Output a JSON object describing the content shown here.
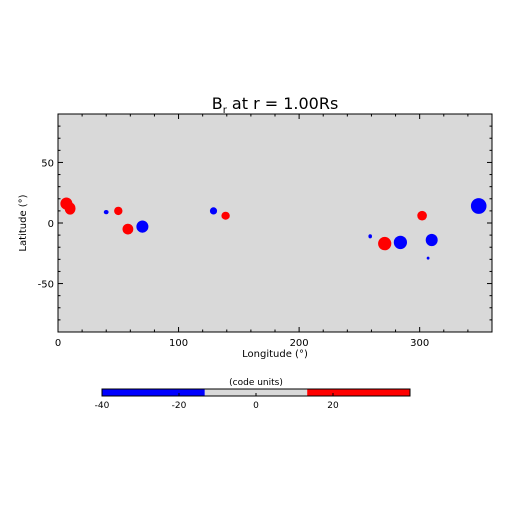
{
  "chart_data": {
    "type": "heatmap",
    "title_main": "B",
    "title_sub": "r",
    "title_rest": " at r = 1.00Rs",
    "xlabel": "Longitude (°)",
    "ylabel": "Latitude (°)",
    "xlim": [
      0,
      360
    ],
    "ylim": [
      -90,
      90
    ],
    "xticks": [
      0,
      100,
      200,
      300
    ],
    "yticks": [
      -50,
      0,
      50
    ],
    "grid": false,
    "background_value": 0,
    "colors": {
      "positive": "#ff0000",
      "negative": "#0000ff",
      "neutral": "#d9d9d9"
    },
    "blobs": [
      {
        "lon": 7,
        "lat": 16,
        "rlon": 5,
        "rlat": 5,
        "sign": "positive"
      },
      {
        "lon": 10,
        "lat": 12,
        "rlon": 4.5,
        "rlat": 5,
        "sign": "positive"
      },
      {
        "lon": 40,
        "lat": 9,
        "rlon": 2,
        "rlat": 1.7,
        "sign": "negative"
      },
      {
        "lon": 50,
        "lat": 10,
        "rlon": 3.5,
        "rlat": 3.5,
        "sign": "positive"
      },
      {
        "lon": 58,
        "lat": -5,
        "rlon": 4.5,
        "rlat": 4.5,
        "sign": "positive"
      },
      {
        "lon": 70,
        "lat": -3,
        "rlon": 5,
        "rlat": 5,
        "sign": "negative"
      },
      {
        "lon": 129,
        "lat": 10,
        "rlon": 3,
        "rlat": 3,
        "sign": "negative"
      },
      {
        "lon": 139,
        "lat": 6,
        "rlon": 3.5,
        "rlat": 3.3,
        "sign": "positive"
      },
      {
        "lon": 259,
        "lat": -11,
        "rlon": 1.5,
        "rlat": 1.7,
        "sign": "negative"
      },
      {
        "lon": 271,
        "lat": -17,
        "rlon": 5.5,
        "rlat": 5.5,
        "sign": "positive"
      },
      {
        "lon": 284,
        "lat": -16,
        "rlon": 5.5,
        "rlat": 5.5,
        "sign": "negative"
      },
      {
        "lon": 302,
        "lat": 6,
        "rlon": 4,
        "rlat": 4,
        "sign": "positive"
      },
      {
        "lon": 310,
        "lat": -14,
        "rlon": 5,
        "rlat": 5,
        "sign": "negative"
      },
      {
        "lon": 307,
        "lat": -29,
        "rlon": 1.2,
        "rlat": 1.2,
        "sign": "negative"
      },
      {
        "lon": 349,
        "lat": 14,
        "rlon": 6.5,
        "rlat": 6.5,
        "sign": "negative"
      }
    ],
    "colorbar": {
      "label": "(code units)",
      "range": [
        -40,
        40
      ],
      "ticks": [
        -40,
        -20,
        0,
        20
      ],
      "segments": [
        {
          "from": -40,
          "to": -13.3,
          "color": "#0000ff"
        },
        {
          "from": -13.3,
          "to": 13.3,
          "color": "#d9d9d9"
        },
        {
          "from": 13.3,
          "to": 40,
          "color": "#ff0000"
        }
      ]
    }
  }
}
